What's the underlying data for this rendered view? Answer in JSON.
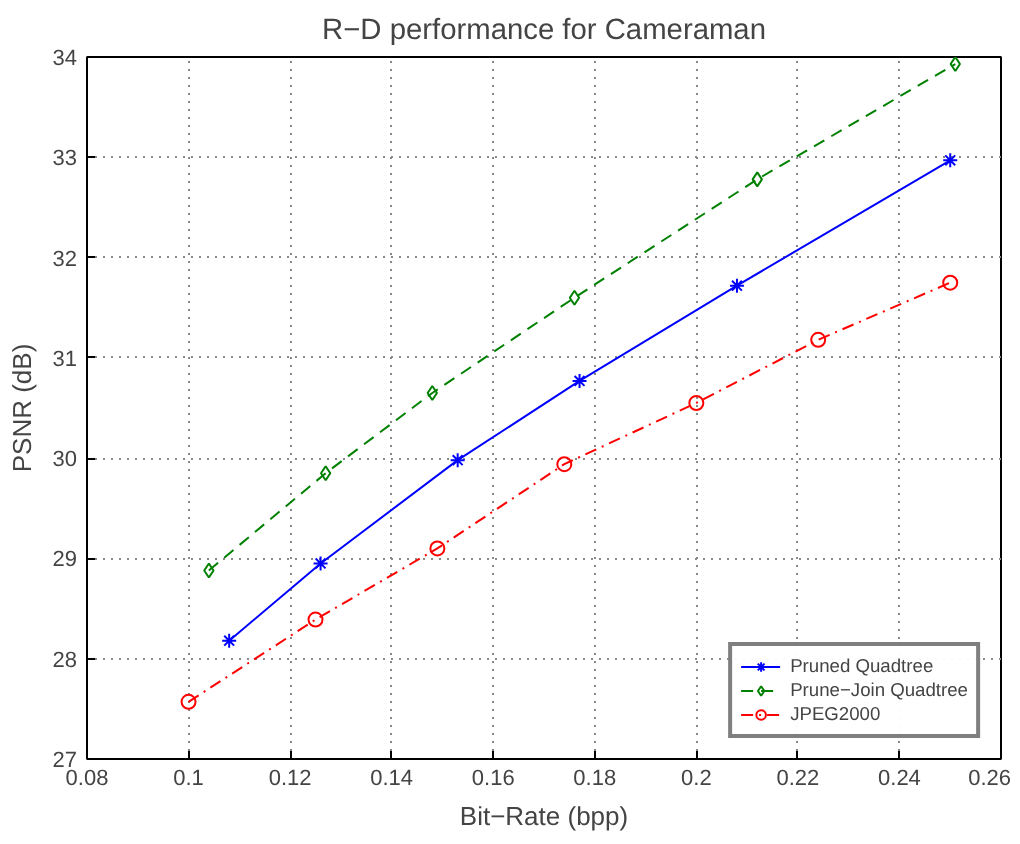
{
  "chart_data": {
    "type": "line",
    "title": "R−D performance for Cameraman",
    "xlabel": "Bit−Rate (bpp)",
    "ylabel": "PSNR (dB)",
    "xlim": [
      0.08,
      0.26
    ],
    "xticks": [
      0.08,
      0.1,
      0.12,
      0.14,
      0.16,
      0.18,
      0.2,
      0.22,
      0.24,
      0.26
    ],
    "ylim": [
      27,
      34
    ],
    "yticks": [
      27,
      28,
      29,
      30,
      31,
      32,
      33,
      34
    ],
    "grid": true,
    "legend": "bottom right",
    "series": [
      {
        "name": "Pruned Quadtree",
        "color": "#0000ff",
        "marker": "cross",
        "line_style": "solid",
        "x": [
          0.108,
          0.126,
          0.153,
          0.177,
          0.208,
          0.25
        ],
        "values": [
          28.18,
          28.95,
          29.98,
          30.77,
          31.72,
          32.97
        ]
      },
      {
        "name": "Prune−Join Quadtree",
        "color": "#008000",
        "marker": "diamond",
        "line_style": "dashed",
        "x": [
          0.104,
          0.127,
          0.148,
          0.176,
          0.212,
          0.251
        ],
        "values": [
          28.88,
          29.85,
          30.65,
          31.6,
          32.78,
          33.93
        ]
      },
      {
        "name": "JPEG2000",
        "color": "#ff0000",
        "marker": "circle",
        "line_style": "dashdot",
        "x": [
          0.1,
          0.125,
          0.149,
          0.174,
          0.2,
          0.224,
          0.25
        ],
        "values": [
          27.57,
          28.39,
          29.1,
          29.94,
          30.55,
          31.18,
          31.75
        ]
      }
    ]
  }
}
